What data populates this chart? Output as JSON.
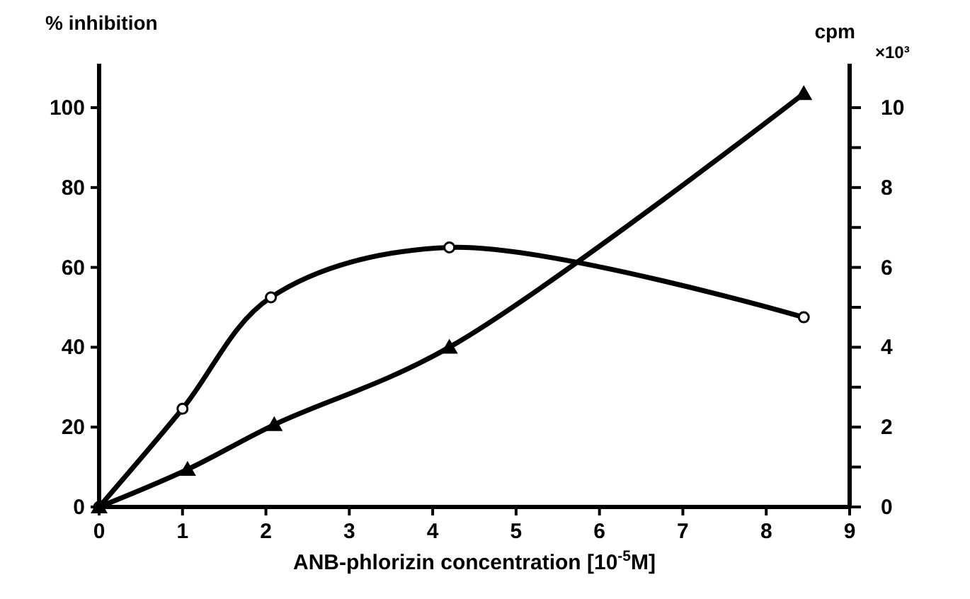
{
  "chart_data": {
    "type": "line",
    "ylabel": "% inhibition",
    "y2label": "cpm",
    "xlabel": "ANB-phlorizin concentration [10$^{-5}$M]",
    "annotations": [
      "×10³"
    ],
    "xlim": [
      0,
      9
    ],
    "xticks": [
      0,
      1,
      2,
      3,
      4,
      5,
      6,
      7,
      8,
      9
    ],
    "ylim": [
      0,
      111
    ],
    "yticks": [
      0,
      20,
      40,
      60,
      80,
      100
    ],
    "y2lim": [
      0,
      11.1
    ],
    "y2ticks": [
      0,
      {
        "value": 1,
        "label": null
      },
      2,
      {
        "value": 3,
        "label": null
      },
      4,
      {
        "value": 5,
        "label": null
      },
      6,
      {
        "value": 7,
        "label": null
      },
      8,
      {
        "value": 9,
        "label": null
      },
      10
    ],
    "line_style": "solid",
    "series": [
      {
        "marker": "circle",
        "color": "#000000",
        "x": [
          0,
          1,
          2.06,
          4.2,
          8.45
        ],
        "values": [
          0,
          24.6,
          52.5,
          65,
          47.5
        ]
      },
      {
        "marker": "triangle",
        "axis": "y2",
        "color": "#000000",
        "x": [
          0,
          1.06,
          2.1,
          4.2,
          8.45
        ],
        "values": [
          0,
          0.94,
          2.06,
          4.0,
          10.35
        ]
      }
    ]
  }
}
